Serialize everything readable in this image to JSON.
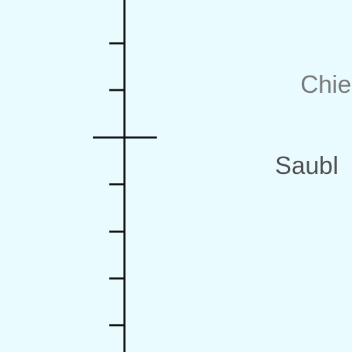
{
  "map": {
    "background_color": "#e9fbff",
    "line_color": "#111111",
    "labels": [
      {
        "text": "Chie",
        "color": "#7a7a7a"
      },
      {
        "text": "Saubl",
        "color": "#505050"
      }
    ]
  }
}
